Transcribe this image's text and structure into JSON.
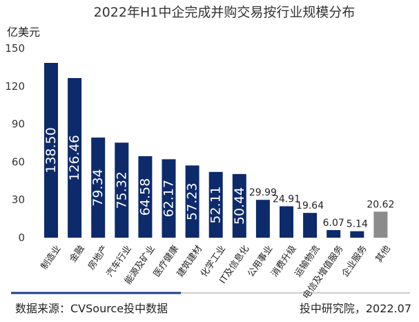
{
  "colors": {
    "primary_bar": "#0d2a6b",
    "other_bar": "#8c8c8c",
    "accent_line": "#1e3c8c",
    "rule_line": "#999999"
  },
  "chart_data": {
    "type": "bar",
    "title": "2022年H1中企完成并购交易按行业规模分布",
    "ylabel": "亿美元",
    "xlabel": "",
    "ylim": [
      0,
      150
    ],
    "yticks": [
      0,
      30,
      60,
      90,
      120,
      150
    ],
    "grid": false,
    "categories": [
      "制造业",
      "金融",
      "房地产",
      "汽车行业",
      "能源及矿业",
      "医疗健康",
      "建筑建材",
      "化学工业",
      "IT及信息化",
      "公用事业",
      "消费升级",
      "运输物流",
      "电信及增值服务",
      "企业服务",
      "其他"
    ],
    "values": [
      138.5,
      126.46,
      79.34,
      75.32,
      64.58,
      62.17,
      57.23,
      52.11,
      50.44,
      29.99,
      24.91,
      19.64,
      6.07,
      5.14,
      20.62
    ],
    "value_labels": [
      "138.50",
      "126.46",
      "79.34",
      "75.32",
      "64.58",
      "62.17",
      "57.23",
      "52.11",
      "50.44",
      "29.99",
      "24.91",
      "19.64",
      "6.07",
      "5.14",
      "20.62"
    ]
  },
  "footer": {
    "source": "数据来源：CVSource投中数据",
    "credit": "投中研究院，2022.07"
  }
}
